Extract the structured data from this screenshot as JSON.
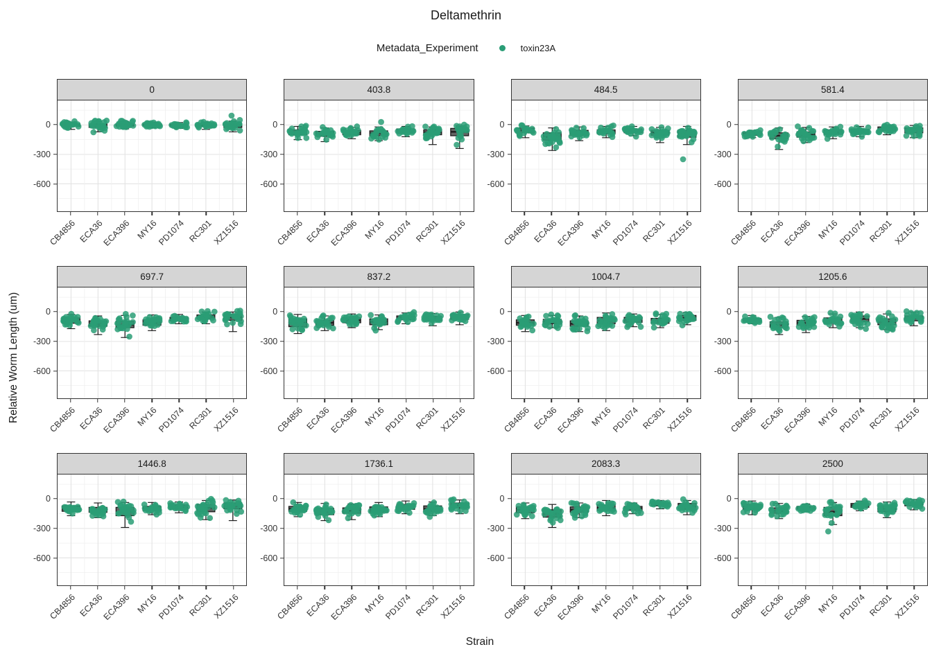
{
  "chart_data": {
    "type": "boxplot",
    "title": "Deltamethrin",
    "xlabel": "Strain",
    "ylabel": "Relative Worm Length (um)",
    "legend": {
      "title": "Metadata_Experiment",
      "entries": [
        {
          "label": "toxin23A"
        }
      ]
    },
    "categories": [
      "CB4856",
      "ECA36",
      "ECA396",
      "MY16",
      "PD1074",
      "RC301",
      "XZ1516"
    ],
    "yticks": [
      0,
      -300,
      -600
    ],
    "yticks_minor": [
      150,
      -150,
      -450,
      -750
    ],
    "ylim": [
      250,
      -880
    ],
    "point_color": "#2a9d76",
    "box_fill": "#636363",
    "box_stroke": "#1c1c1c",
    "grid_major_color": "#e3e3e3",
    "grid_minor_color": "#efefef",
    "group_stats_format": [
      "median",
      "q1",
      "q3",
      "whisker_lo",
      "whisker_hi",
      "jitter_sd",
      "n_points",
      "outliers"
    ],
    "facets": [
      {
        "label": "0",
        "groups": [
          [
            0,
            -15,
            12,
            -45,
            30,
            22,
            22
          ],
          [
            -5,
            -25,
            10,
            -70,
            35,
            28,
            24
          ],
          [
            0,
            -12,
            12,
            -40,
            35,
            20,
            22
          ],
          [
            2,
            -8,
            12,
            -30,
            30,
            15,
            20
          ],
          [
            -2,
            -12,
            8,
            -35,
            25,
            14,
            20
          ],
          [
            0,
            -12,
            10,
            -45,
            30,
            18,
            22
          ],
          [
            -8,
            -25,
            8,
            -70,
            40,
            30,
            22,
            [
              95
            ]
          ]
        ]
      },
      {
        "label": "403.8",
        "groups": [
          [
            -75,
            -100,
            -50,
            -150,
            -15,
            32,
            22
          ],
          [
            -90,
            -115,
            -65,
            -170,
            -30,
            33,
            22
          ],
          [
            -80,
            -100,
            -55,
            -140,
            -25,
            28,
            22
          ],
          [
            -85,
            -110,
            -60,
            -160,
            -20,
            33,
            22,
            [
              30
            ]
          ],
          [
            -60,
            -80,
            -40,
            -120,
            -15,
            24,
            20
          ],
          [
            -75,
            -100,
            -50,
            -200,
            -20,
            38,
            22
          ],
          [
            -70,
            -110,
            -35,
            -240,
            -10,
            52,
            22
          ]
        ]
      },
      {
        "label": "484.5",
        "groups": [
          [
            -55,
            -80,
            -30,
            -130,
            -10,
            28,
            22
          ],
          [
            -120,
            -155,
            -80,
            -260,
            -30,
            48,
            24
          ],
          [
            -80,
            -105,
            -55,
            -160,
            -20,
            32,
            22
          ],
          [
            -70,
            -90,
            -50,
            -130,
            -15,
            26,
            20
          ],
          [
            -60,
            -80,
            -40,
            -110,
            -15,
            23,
            20
          ],
          [
            -80,
            -105,
            -55,
            -180,
            -25,
            33,
            22
          ],
          [
            -90,
            -125,
            -55,
            -200,
            -15,
            42,
            22,
            [
              -350
            ]
          ]
        ]
      },
      {
        "label": "581.4",
        "groups": [
          [
            -90,
            -105,
            -75,
            -130,
            -55,
            18,
            18
          ],
          [
            -110,
            -140,
            -80,
            -250,
            -30,
            43,
            22
          ],
          [
            -100,
            -125,
            -70,
            -180,
            -25,
            36,
            24
          ],
          [
            -75,
            -95,
            -50,
            -140,
            -20,
            28,
            20
          ],
          [
            -65,
            -85,
            -45,
            -120,
            -15,
            24,
            20
          ],
          [
            -40,
            -60,
            -20,
            -100,
            0,
            23,
            20
          ],
          [
            -55,
            -80,
            -30,
            -130,
            -5,
            28,
            22
          ]
        ]
      },
      {
        "label": "697.7",
        "groups": [
          [
            -90,
            -115,
            -60,
            -170,
            -25,
            33,
            22
          ],
          [
            -120,
            -145,
            -90,
            -230,
            -40,
            38,
            22
          ],
          [
            -130,
            -160,
            -95,
            -260,
            -35,
            48,
            24
          ],
          [
            -110,
            -135,
            -80,
            -190,
            -30,
            36,
            22
          ],
          [
            -70,
            -90,
            -55,
            -120,
            -25,
            21,
            20
          ],
          [
            -50,
            -70,
            -30,
            -120,
            0,
            26,
            20
          ],
          [
            -55,
            -85,
            -25,
            -200,
            0,
            38,
            24
          ]
        ]
      },
      {
        "label": "837.2",
        "groups": [
          [
            -110,
            -150,
            -70,
            -220,
            -25,
            48,
            22
          ],
          [
            -110,
            -135,
            -85,
            -190,
            -40,
            33,
            22
          ],
          [
            -85,
            -110,
            -60,
            -160,
            -20,
            30,
            22
          ],
          [
            -100,
            -130,
            -70,
            -180,
            -30,
            36,
            22
          ],
          [
            -60,
            -80,
            -40,
            -120,
            -10,
            24,
            20
          ],
          [
            -65,
            -90,
            -45,
            -140,
            -15,
            28,
            22
          ],
          [
            -50,
            -75,
            -25,
            -130,
            0,
            30,
            22
          ]
        ]
      },
      {
        "label": "1004.7",
        "groups": [
          [
            -110,
            -135,
            -80,
            -200,
            -35,
            36,
            22
          ],
          [
            -100,
            -120,
            -75,
            -160,
            -35,
            28,
            22
          ],
          [
            -120,
            -145,
            -90,
            -200,
            -40,
            36,
            24
          ],
          [
            -90,
            -120,
            -55,
            -190,
            -10,
            40,
            24
          ],
          [
            -80,
            -105,
            -55,
            -150,
            -20,
            30,
            22
          ],
          [
            -90,
            -115,
            -65,
            -160,
            -25,
            30,
            22
          ],
          [
            -60,
            -85,
            -35,
            -130,
            -5,
            28,
            22
          ]
        ]
      },
      {
        "label": "1205.6",
        "groups": [
          [
            -80,
            -95,
            -65,
            -120,
            -35,
            18,
            20
          ],
          [
            -130,
            -155,
            -100,
            -230,
            -55,
            38,
            22
          ],
          [
            -110,
            -135,
            -85,
            -210,
            -45,
            33,
            22
          ],
          [
            -90,
            -115,
            -60,
            -160,
            -20,
            33,
            22
          ],
          [
            -70,
            -100,
            -40,
            -160,
            0,
            38,
            22
          ],
          [
            -100,
            -130,
            -70,
            -180,
            -20,
            38,
            24
          ],
          [
            -65,
            -90,
            -40,
            -140,
            0,
            30,
            22
          ]
        ]
      },
      {
        "label": "1446.8",
        "groups": [
          [
            -100,
            -125,
            -70,
            -170,
            -30,
            33,
            22
          ],
          [
            -110,
            -135,
            -85,
            -190,
            -40,
            33,
            22
          ],
          [
            -130,
            -170,
            -85,
            -290,
            -35,
            52,
            24
          ],
          [
            -100,
            -120,
            -75,
            -160,
            -35,
            28,
            20
          ],
          [
            -85,
            -105,
            -60,
            -140,
            -30,
            26,
            20
          ],
          [
            -90,
            -130,
            -55,
            -210,
            -15,
            48,
            24
          ],
          [
            -70,
            -100,
            -40,
            -220,
            -10,
            42,
            22
          ]
        ]
      },
      {
        "label": "1736.1",
        "groups": [
          [
            -100,
            -125,
            -75,
            -180,
            -35,
            33,
            22
          ],
          [
            -130,
            -160,
            -95,
            -220,
            -45,
            40,
            22
          ],
          [
            -120,
            -145,
            -90,
            -210,
            -50,
            36,
            22
          ],
          [
            -110,
            -135,
            -80,
            -180,
            -35,
            33,
            24
          ],
          [
            -80,
            -105,
            -55,
            -150,
            -20,
            30,
            22
          ],
          [
            -100,
            -125,
            -70,
            -170,
            -30,
            33,
            22
          ],
          [
            -65,
            -90,
            -40,
            -150,
            -10,
            30,
            22
          ]
        ]
      },
      {
        "label": "2083.3",
        "groups": [
          [
            -110,
            -140,
            -80,
            -200,
            -40,
            36,
            22
          ],
          [
            -150,
            -185,
            -110,
            -290,
            -55,
            48,
            24
          ],
          [
            -110,
            -135,
            -80,
            -190,
            -40,
            33,
            22
          ],
          [
            -90,
            -115,
            -60,
            -170,
            -15,
            36,
            22
          ],
          [
            -95,
            -115,
            -75,
            -150,
            -40,
            25,
            18
          ],
          [
            -55,
            -70,
            -40,
            -100,
            -15,
            18,
            18
          ],
          [
            -75,
            -105,
            -45,
            -160,
            -15,
            36,
            22
          ]
        ]
      },
      {
        "label": "2500",
        "groups": [
          [
            -80,
            -105,
            -55,
            -160,
            -20,
            33,
            24
          ],
          [
            -120,
            -145,
            -90,
            -200,
            -45,
            36,
            22
          ],
          [
            -90,
            -105,
            -75,
            -130,
            -50,
            18,
            16
          ],
          [
            -130,
            -170,
            -85,
            -260,
            -35,
            52,
            22,
            [
              -330
            ]
          ],
          [
            -65,
            -85,
            -45,
            -120,
            -20,
            23,
            18
          ],
          [
            -100,
            -130,
            -70,
            -190,
            -30,
            38,
            24
          ],
          [
            -50,
            -70,
            -30,
            -110,
            -5,
            24,
            22
          ]
        ]
      }
    ]
  }
}
